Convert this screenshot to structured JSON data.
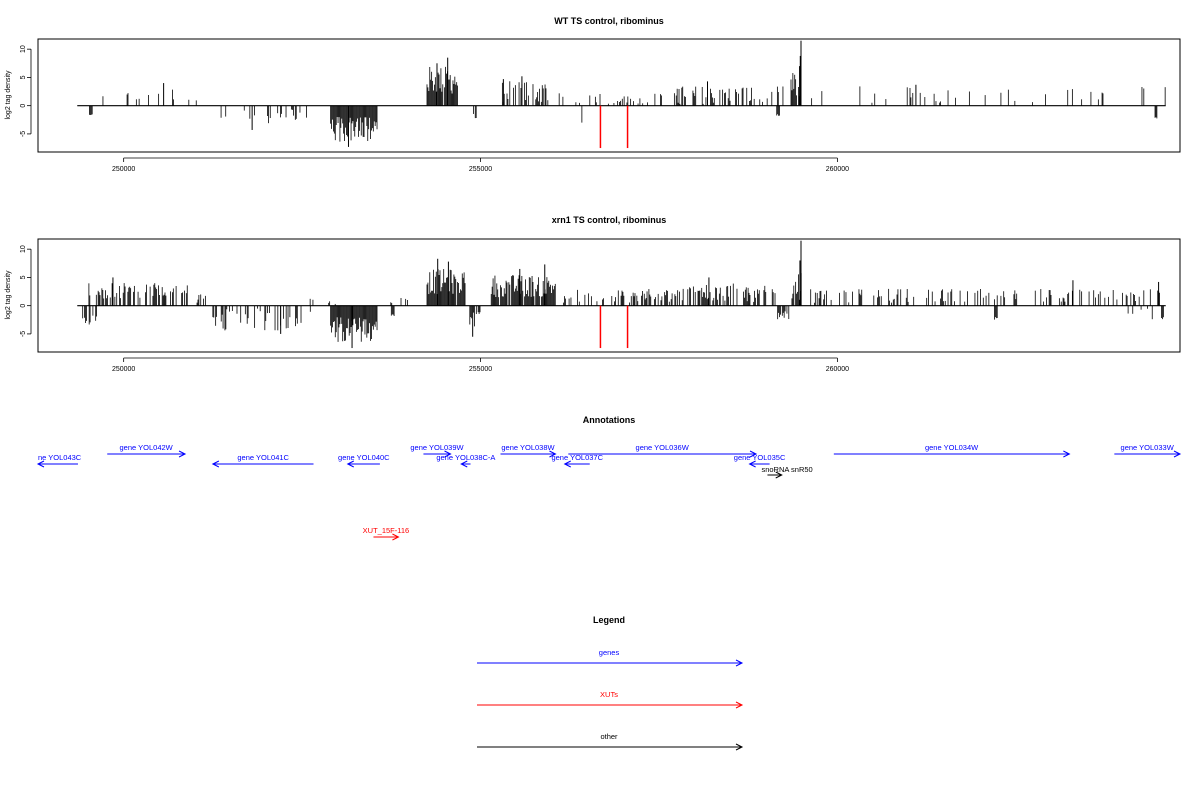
{
  "chart_data": [
    {
      "type": "bar",
      "title": "WT TS control, ribominus",
      "xlabel": "",
      "ylabel": "log2 tag density",
      "xlim": [
        248800,
        264800
      ],
      "ylim": [
        -8,
        12
      ],
      "xticks": [
        250000,
        255000,
        260000
      ],
      "xtick_labels": [
        "250000",
        "255000",
        "260000"
      ],
      "yticks": [
        -5,
        0,
        5,
        10
      ],
      "ytick_labels": [
        "-5",
        "0",
        "5",
        "10"
      ],
      "grid": false,
      "baseline": 0,
      "vlines": [
        {
          "x": 256680,
          "ymin": -7.5,
          "ymax": 0,
          "color": "#ff0000"
        },
        {
          "x": 257060,
          "ymin": -7.5,
          "ymax": 0,
          "color": "#ff0000"
        }
      ],
      "positive_regions": [
        {
          "start": 249450,
          "end": 250800,
          "density": 0.12,
          "min": 0.5,
          "max": 3.0,
          "peaks": [
            {
              "x": 250560,
              "y": 4.0
            }
          ]
        },
        {
          "start": 250900,
          "end": 251200,
          "density": 0.1,
          "min": 0.5,
          "max": 2.2,
          "peaks": []
        },
        {
          "start": 254250,
          "end": 254700,
          "density": 0.9,
          "min": 2.0,
          "max": 7.0,
          "peaks": [
            {
              "x": 254540,
              "y": 8.5
            },
            {
              "x": 254390,
              "y": 7.5
            }
          ]
        },
        {
          "start": 255280,
          "end": 255950,
          "density": 0.55,
          "min": 0.5,
          "max": 4.5,
          "peaks": [
            {
              "x": 255320,
              "y": 4.7
            },
            {
              "x": 255580,
              "y": 5.2
            }
          ]
        },
        {
          "start": 256050,
          "end": 257300,
          "density": 0.22,
          "min": 0.3,
          "max": 2.2,
          "peaks": []
        },
        {
          "start": 257300,
          "end": 259250,
          "density": 0.35,
          "min": 0.3,
          "max": 3.5,
          "peaks": [
            {
              "x": 258180,
              "y": 4.3
            }
          ]
        },
        {
          "start": 259350,
          "end": 259500,
          "density": 0.9,
          "min": 1.0,
          "max": 6.0,
          "peaks": [
            {
              "x": 259490,
              "y": 11.5
            },
            {
              "x": 259480,
              "y": 8.8
            },
            {
              "x": 259470,
              "y": 7.0
            }
          ]
        },
        {
          "start": 259600,
          "end": 264600,
          "density": 0.07,
          "min": 0.5,
          "max": 3.5,
          "peaks": [
            {
              "x": 261100,
              "y": 3.7
            }
          ]
        }
      ],
      "negative_regions": [
        {
          "start": 249520,
          "end": 249560,
          "density": 1.0,
          "min": 1.5,
          "max": 1.8,
          "peaks": []
        },
        {
          "start": 251300,
          "end": 252600,
          "density": 0.18,
          "min": 0.5,
          "max": 3.5,
          "peaks": [
            {
              "x": 251800,
              "y": -4.3
            }
          ]
        },
        {
          "start": 252900,
          "end": 253550,
          "density": 1.0,
          "min": 2.0,
          "max": 6.5,
          "peaks": [
            {
              "x": 253150,
              "y": -7.3
            }
          ]
        },
        {
          "start": 254900,
          "end": 254960,
          "density": 0.6,
          "min": 0.5,
          "max": 2.5,
          "peaks": []
        },
        {
          "start": 256420,
          "end": 256430,
          "density": 1.0,
          "min": 3.0,
          "max": 3.0,
          "peaks": []
        },
        {
          "start": 259150,
          "end": 259190,
          "density": 1.0,
          "min": 1.5,
          "max": 1.8,
          "peaks": []
        },
        {
          "start": 264450,
          "end": 264480,
          "density": 1.0,
          "min": 2.0,
          "max": 2.3,
          "peaks": []
        }
      ]
    },
    {
      "type": "bar",
      "title": "xrn1 TS control, ribominus",
      "xlabel": "",
      "ylabel": "log2 tag density",
      "xlim": [
        248800,
        264800
      ],
      "ylim": [
        -8,
        12
      ],
      "xticks": [
        250000,
        255000,
        260000
      ],
      "xtick_labels": [
        "250000",
        "255000",
        "260000"
      ],
      "yticks": [
        -5,
        0,
        5,
        10
      ],
      "ytick_labels": [
        "-5",
        "0",
        "5",
        "10"
      ],
      "grid": false,
      "baseline": 0,
      "vlines": [
        {
          "x": 256680,
          "ymin": -7.5,
          "ymax": 0,
          "color": "#ff0000"
        },
        {
          "x": 257060,
          "ymin": -7.5,
          "ymax": 0,
          "color": "#ff0000"
        }
      ],
      "positive_regions": [
        {
          "start": 249500,
          "end": 250900,
          "density": 0.6,
          "min": 1.0,
          "max": 4.0,
          "peaks": [
            {
              "x": 249850,
              "y": 5.0
            }
          ]
        },
        {
          "start": 250950,
          "end": 251200,
          "density": 0.3,
          "min": 0.5,
          "max": 2.5,
          "peaks": []
        },
        {
          "start": 252600,
          "end": 253000,
          "density": 0.15,
          "min": 0.3,
          "max": 1.5,
          "peaks": []
        },
        {
          "start": 253600,
          "end": 254000,
          "density": 0.12,
          "min": 0.3,
          "max": 1.5,
          "peaks": []
        },
        {
          "start": 254250,
          "end": 254800,
          "density": 0.95,
          "min": 2.0,
          "max": 6.5,
          "peaks": [
            {
              "x": 254400,
              "y": 8.3
            },
            {
              "x": 254550,
              "y": 7.8
            }
          ]
        },
        {
          "start": 255150,
          "end": 256050,
          "density": 0.9,
          "min": 1.5,
          "max": 5.5,
          "peaks": [
            {
              "x": 255900,
              "y": 7.3
            },
            {
              "x": 255550,
              "y": 6.5
            }
          ]
        },
        {
          "start": 256150,
          "end": 257800,
          "density": 0.45,
          "min": 0.5,
          "max": 3.0,
          "peaks": []
        },
        {
          "start": 257800,
          "end": 259200,
          "density": 0.5,
          "min": 0.5,
          "max": 4.0,
          "peaks": [
            {
              "x": 258200,
              "y": 5.0
            }
          ]
        },
        {
          "start": 259350,
          "end": 259500,
          "density": 0.95,
          "min": 1.0,
          "max": 6.0,
          "peaks": [
            {
              "x": 259490,
              "y": 11.5
            },
            {
              "x": 259475,
              "y": 8.0
            }
          ]
        },
        {
          "start": 259600,
          "end": 264600,
          "density": 0.28,
          "min": 0.5,
          "max": 3.0,
          "peaks": [
            {
              "x": 263300,
              "y": 4.5
            },
            {
              "x": 264500,
              "y": 4.2
            }
          ]
        }
      ],
      "negative_regions": [
        {
          "start": 249400,
          "end": 249650,
          "density": 0.5,
          "min": 1.0,
          "max": 3.5,
          "peaks": []
        },
        {
          "start": 251250,
          "end": 252650,
          "density": 0.4,
          "min": 0.5,
          "max": 4.5,
          "peaks": [
            {
              "x": 252200,
              "y": -5.0
            }
          ]
        },
        {
          "start": 252900,
          "end": 253550,
          "density": 1.0,
          "min": 2.0,
          "max": 6.5,
          "peaks": [
            {
              "x": 253200,
              "y": -7.5
            }
          ]
        },
        {
          "start": 253750,
          "end": 253800,
          "density": 1.0,
          "min": 1.5,
          "max": 2.0,
          "peaks": []
        },
        {
          "start": 254850,
          "end": 255000,
          "density": 0.7,
          "min": 1.0,
          "max": 4.0,
          "peaks": [
            {
              "x": 254890,
              "y": -5.5
            }
          ]
        },
        {
          "start": 259150,
          "end": 259320,
          "density": 0.6,
          "min": 1.0,
          "max": 2.5,
          "peaks": []
        },
        {
          "start": 262200,
          "end": 262250,
          "density": 1.0,
          "min": 2.0,
          "max": 2.5,
          "peaks": []
        },
        {
          "start": 263800,
          "end": 264600,
          "density": 0.2,
          "min": 0.5,
          "max": 2.5,
          "peaks": []
        }
      ]
    }
  ],
  "annotations": {
    "title": "Annotations",
    "features": [
      {
        "label": "ne YOL043C",
        "start": 248800,
        "end": 249360,
        "strand": "-",
        "track": 1,
        "kind": "gene",
        "label_pos": "above-start"
      },
      {
        "label": "gene YOL042W",
        "start": 249770,
        "end": 250860,
        "strand": "+",
        "track": 0,
        "kind": "gene"
      },
      {
        "label": "gene YOL041C",
        "start": 251250,
        "end": 252660,
        "strand": "-",
        "track": 1,
        "kind": "gene"
      },
      {
        "label": "gene YOL040C",
        "start": 253140,
        "end": 253590,
        "strand": "-",
        "track": 1,
        "kind": "gene"
      },
      {
        "label": "gene YOL039W",
        "start": 254200,
        "end": 254580,
        "strand": "+",
        "track": 0,
        "kind": "gene"
      },
      {
        "label": "gene YOL038C-A",
        "start": 254730,
        "end": 254860,
        "strand": "-",
        "track": 1,
        "kind": "gene"
      },
      {
        "label": "gene YOL038W",
        "start": 255280,
        "end": 256050,
        "strand": "+",
        "track": 0,
        "kind": "gene"
      },
      {
        "label": "gene YOL037C",
        "start": 256180,
        "end": 256530,
        "strand": "-",
        "track": 1,
        "kind": "gene"
      },
      {
        "label": "gene YOL036W",
        "start": 256230,
        "end": 258860,
        "strand": "+",
        "track": 0,
        "kind": "gene"
      },
      {
        "label": "gene YOL035C",
        "start": 258770,
        "end": 259050,
        "strand": "-",
        "track": 1,
        "kind": "gene"
      },
      {
        "label": "snoRNA snR50",
        "start": 259020,
        "end": 259220,
        "strand": "+",
        "track": 2,
        "kind": "other"
      },
      {
        "label": "gene YOL034W",
        "start": 259950,
        "end": 263250,
        "strand": "+",
        "track": 0,
        "kind": "gene"
      },
      {
        "label": "gene YOL033W",
        "start": 263880,
        "end": 264800,
        "strand": "+",
        "track": 0,
        "kind": "gene"
      },
      {
        "label": "XUT_15F-116",
        "start": 253500,
        "end": 253850,
        "strand": "+",
        "track": 3,
        "kind": "XUT"
      }
    ]
  },
  "legend": {
    "title": "Legend",
    "items": [
      {
        "label": "genes",
        "color": "#0000ff"
      },
      {
        "label": "XUTs",
        "color": "#ff0000"
      },
      {
        "label": "other",
        "color": "#000000"
      }
    ]
  }
}
